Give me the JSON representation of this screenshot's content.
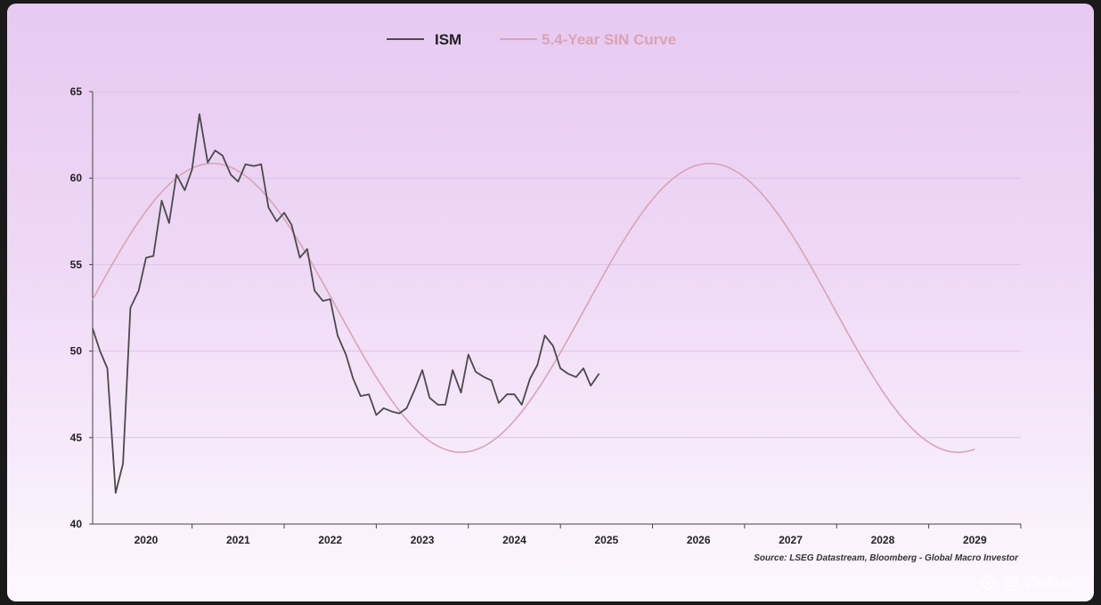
{
  "chart_data": {
    "type": "line",
    "legend_position": "top-center",
    "grid": "horizontal",
    "series": [
      {
        "name": "ISM",
        "color": "#4a4a4a",
        "points": [
          [
            2019.42,
            51.3
          ],
          [
            2019.5,
            50.0
          ],
          [
            2019.58,
            49.0
          ],
          [
            2019.67,
            41.8
          ],
          [
            2019.75,
            43.5
          ],
          [
            2019.83,
            52.5
          ],
          [
            2019.92,
            53.5
          ],
          [
            2020.0,
            55.4
          ],
          [
            2020.08,
            55.5
          ],
          [
            2020.17,
            58.7
          ],
          [
            2020.25,
            57.4
          ],
          [
            2020.33,
            60.2
          ],
          [
            2020.42,
            59.3
          ],
          [
            2020.5,
            60.5
          ],
          [
            2020.58,
            63.7
          ],
          [
            2020.67,
            60.9
          ],
          [
            2020.75,
            61.6
          ],
          [
            2020.83,
            61.3
          ],
          [
            2020.92,
            60.2
          ],
          [
            2021.0,
            59.8
          ],
          [
            2021.08,
            60.8
          ],
          [
            2021.17,
            60.7
          ],
          [
            2021.25,
            60.8
          ],
          [
            2021.33,
            58.3
          ],
          [
            2021.42,
            57.5
          ],
          [
            2021.5,
            58.0
          ],
          [
            2021.58,
            57.3
          ],
          [
            2021.67,
            55.4
          ],
          [
            2021.75,
            55.9
          ],
          [
            2021.83,
            53.5
          ],
          [
            2021.92,
            52.9
          ],
          [
            2022.0,
            53.0
          ],
          [
            2022.08,
            50.9
          ],
          [
            2022.17,
            49.8
          ],
          [
            2022.25,
            48.4
          ],
          [
            2022.33,
            47.4
          ],
          [
            2022.42,
            47.5
          ],
          [
            2022.5,
            46.3
          ],
          [
            2022.58,
            46.7
          ],
          [
            2022.67,
            46.5
          ],
          [
            2022.75,
            46.4
          ],
          [
            2022.83,
            46.7
          ],
          [
            2022.92,
            47.8
          ],
          [
            2023.0,
            48.9
          ],
          [
            2023.08,
            47.3
          ],
          [
            2023.17,
            46.9
          ],
          [
            2023.25,
            46.9
          ],
          [
            2023.33,
            48.9
          ],
          [
            2023.42,
            47.6
          ],
          [
            2023.5,
            49.8
          ],
          [
            2023.58,
            48.8
          ],
          [
            2023.67,
            48.5
          ],
          [
            2023.75,
            48.3
          ],
          [
            2023.83,
            47.0
          ],
          [
            2023.92,
            47.5
          ],
          [
            2024.0,
            47.5
          ],
          [
            2024.08,
            46.9
          ],
          [
            2024.17,
            48.4
          ],
          [
            2024.25,
            49.2
          ],
          [
            2024.33,
            50.9
          ],
          [
            2024.42,
            50.3
          ],
          [
            2024.5,
            49.0
          ],
          [
            2024.58,
            48.7
          ],
          [
            2024.67,
            48.5
          ],
          [
            2024.75,
            49.0
          ],
          [
            2024.83,
            48.0
          ],
          [
            2024.92,
            48.7
          ]
        ]
      },
      {
        "name": "5.4-Year SIN Curve",
        "color": "#d9a3b4",
        "function": "sine",
        "period_years": 5.4,
        "center": 52.5,
        "amplitude": 8.35,
        "peak_at": 2020.72,
        "x_range": [
          2019.42,
          2029.0
        ]
      }
    ],
    "x_ticks": [
      "2020",
      "2021",
      "2022",
      "2023",
      "2024",
      "2025",
      "2026",
      "2027",
      "2028",
      "2029"
    ],
    "x_tick_values": [
      2020,
      2021,
      2022,
      2023,
      2024,
      2025,
      2026,
      2027,
      2028,
      2029
    ],
    "x_range": [
      2019.42,
      2029.5
    ],
    "y_ticks": [
      "40",
      "45",
      "50",
      "55",
      "60",
      "65"
    ],
    "y_range": [
      40,
      65
    ],
    "source": "Source: LSEG Datastream, Bloomberg - Global Macro Investor"
  },
  "watermark": "@ Varkun"
}
